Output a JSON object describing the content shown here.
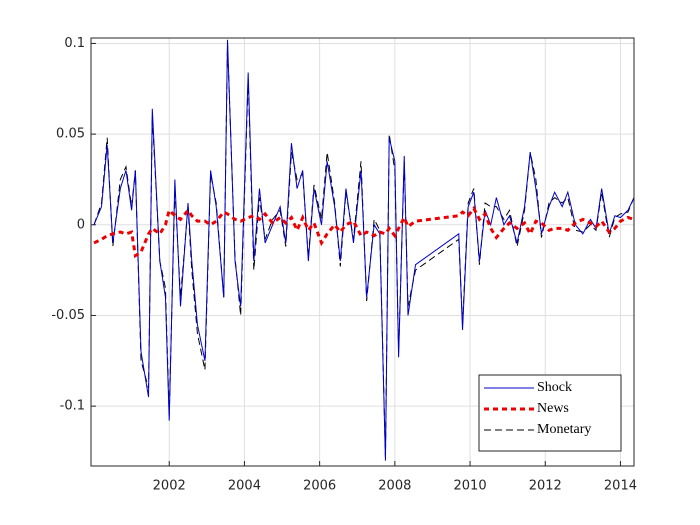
{
  "chart_data": {
    "type": "line",
    "x": [
      2000.0,
      2000.2,
      2000.35,
      2000.5,
      2000.7,
      2000.85,
      2001.0,
      2001.1,
      2001.25,
      2001.45,
      2001.55,
      2001.75,
      2001.9,
      2002.0,
      2002.15,
      2002.3,
      2002.5,
      2002.6,
      2002.75,
      2002.95,
      2003.1,
      2003.25,
      2003.45,
      2003.55,
      2003.75,
      2003.9,
      2004.1,
      2004.25,
      2004.4,
      2004.55,
      2004.75,
      2004.95,
      2005.1,
      2005.25,
      2005.4,
      2005.55,
      2005.7,
      2005.85,
      2006.05,
      2006.2,
      2006.4,
      2006.55,
      2006.7,
      2006.9,
      2007.1,
      2007.25,
      2007.45,
      2007.6,
      2007.75,
      2007.85,
      2008.0,
      2008.1,
      2008.25,
      2008.35,
      2008.55,
      2009.7,
      2009.8,
      2009.95,
      2010.1,
      2010.25,
      2010.4,
      2010.55,
      2010.7,
      2010.9,
      2011.05,
      2011.25,
      2011.45,
      2011.6,
      2011.75,
      2011.9,
      2012.1,
      2012.25,
      2012.45,
      2012.6,
      2012.8,
      2013.0,
      2013.2,
      2013.35,
      2013.5,
      2013.7,
      2013.85,
      2014.0,
      2014.2,
      2014.36
    ],
    "series": [
      {
        "name": "Shock",
        "color": "#0000cc",
        "width": 1,
        "dash": "none",
        "values": [
          0.0,
          0.01,
          0.044,
          -0.01,
          0.02,
          0.03,
          0.008,
          0.03,
          -0.07,
          -0.095,
          0.064,
          -0.02,
          -0.04,
          -0.108,
          0.025,
          -0.045,
          0.012,
          -0.02,
          -0.055,
          -0.075,
          0.03,
          0.01,
          -0.04,
          0.102,
          -0.02,
          -0.045,
          0.084,
          -0.02,
          0.02,
          -0.01,
          0.0,
          0.01,
          -0.01,
          0.045,
          0.02,
          0.03,
          -0.02,
          0.02,
          0.0,
          0.035,
          0.01,
          -0.02,
          0.02,
          -0.01,
          0.03,
          -0.04,
          0.0,
          -0.005,
          -0.13,
          0.048,
          0.035,
          -0.073,
          0.038,
          -0.05,
          -0.022,
          -0.005,
          -0.058,
          0.01,
          0.018,
          -0.02,
          0.008,
          0.0,
          0.015,
          0.0,
          0.005,
          -0.01,
          0.01,
          0.04,
          0.02,
          -0.005,
          0.01,
          0.018,
          0.01,
          0.018,
          0.0,
          -0.005,
          0.003,
          -0.002,
          0.02,
          -0.005,
          0.005,
          0.004,
          0.008,
          0.015
        ]
      },
      {
        "name": "News",
        "color": "#ee0000",
        "width": 3,
        "dash": "5,4",
        "values": [
          -0.01,
          -0.008,
          -0.006,
          -0.005,
          -0.004,
          -0.005,
          -0.004,
          -0.017,
          -0.015,
          -0.005,
          -0.002,
          -0.005,
          0.0,
          0.008,
          0.005,
          0.003,
          0.008,
          0.005,
          0.002,
          0.002,
          0.0,
          0.002,
          0.007,
          0.006,
          0.003,
          0.002,
          0.004,
          0.005,
          0.003,
          0.006,
          0.001,
          0.004,
          0.001,
          0.004,
          -0.003,
          0.004,
          -0.003,
          0.001,
          -0.01,
          -0.005,
          0.0,
          -0.004,
          0.0,
          0.002,
          -0.006,
          -0.004,
          -0.006,
          -0.004,
          -0.005,
          -0.002,
          -0.006,
          -0.002,
          0.004,
          -0.001,
          0.002,
          0.005,
          0.007,
          0.005,
          0.009,
          0.003,
          0.006,
          -0.002,
          -0.007,
          -0.002,
          0.001,
          -0.002,
          0.001,
          -0.005,
          0.002,
          0.001,
          -0.003,
          -0.002,
          -0.002,
          -0.003,
          0.001,
          0.003,
          0.001,
          -0.001,
          0.002,
          -0.004,
          -0.002,
          0.002,
          0.004,
          0.003
        ]
      },
      {
        "name": "Monetary",
        "color": "#000000",
        "width": 1,
        "dash": "7,4",
        "values": [
          0.0,
          0.012,
          0.048,
          -0.012,
          0.025,
          0.032,
          0.01,
          0.03,
          -0.075,
          -0.09,
          0.06,
          -0.02,
          -0.035,
          -0.105,
          0.02,
          -0.04,
          0.01,
          -0.025,
          -0.06,
          -0.08,
          0.028,
          0.012,
          -0.04,
          0.1,
          -0.018,
          -0.05,
          0.08,
          -0.025,
          0.015,
          -0.008,
          0.003,
          0.008,
          -0.012,
          0.04,
          0.025,
          0.028,
          -0.018,
          0.022,
          0.003,
          0.04,
          0.012,
          -0.023,
          0.018,
          -0.008,
          0.035,
          -0.042,
          0.003,
          -0.003,
          -0.128,
          0.05,
          0.03,
          -0.07,
          0.035,
          -0.045,
          -0.025,
          -0.008,
          -0.055,
          0.012,
          0.02,
          -0.022,
          0.012,
          0.01,
          0.01,
          0.003,
          0.008,
          -0.012,
          0.008,
          0.04,
          0.025,
          -0.007,
          0.012,
          0.015,
          0.012,
          0.015,
          -0.003,
          -0.004,
          0.0,
          -0.003,
          0.018,
          -0.007,
          0.004,
          0.006,
          0.007,
          0.015
        ]
      }
    ],
    "draw_order": [
      2,
      0,
      1
    ],
    "xlim": [
      1999.92,
      2014.36
    ],
    "xticks": [
      2002,
      2004,
      2006,
      2008,
      2010,
      2012,
      2014
    ],
    "ylim": [
      -0.133,
      0.103
    ],
    "yticks": [
      -0.1,
      -0.05,
      0,
      0.05,
      0.1
    ],
    "grid": true,
    "legend": "southeast"
  }
}
